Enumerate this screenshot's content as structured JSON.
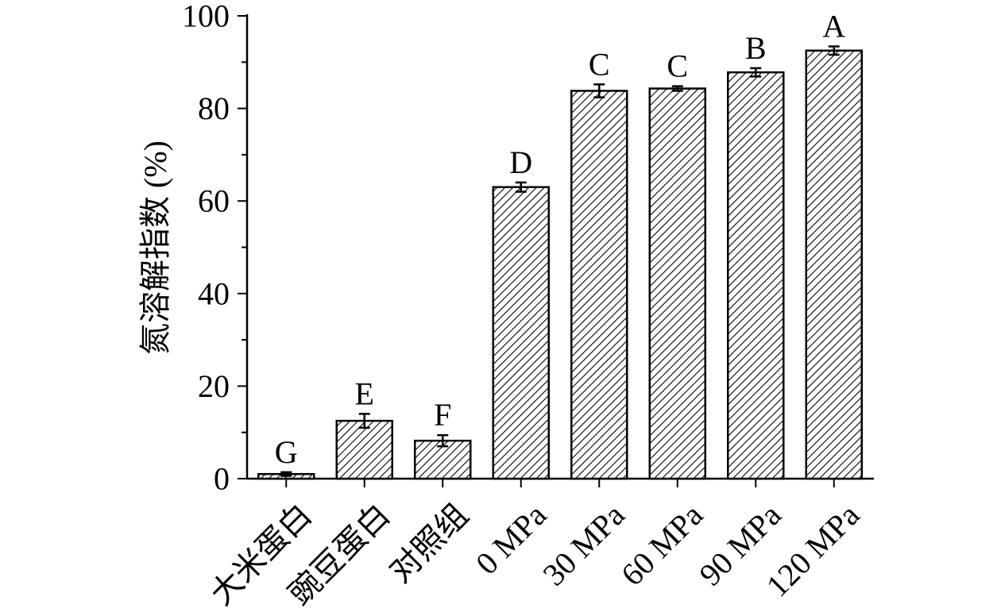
{
  "chart_data": {
    "type": "bar",
    "categories": [
      "大米蛋白",
      "豌豆蛋白",
      "对照组",
      "0 MPa",
      "30 MPa",
      "60 MPa",
      "90 MPa",
      "120 MPa"
    ],
    "values": [
      1.0,
      12.5,
      8.2,
      63.0,
      83.8,
      84.3,
      87.8,
      92.5
    ],
    "errors": [
      0.4,
      1.5,
      1.2,
      1.0,
      1.4,
      0.5,
      0.9,
      0.9
    ],
    "significance": [
      "G",
      "E",
      "F",
      "D",
      "C",
      "C",
      "B",
      "A"
    ],
    "ylabel": "氮溶解指数 (%)",
    "ylim": [
      0,
      100
    ],
    "yticks": [
      "0",
      "20",
      "40",
      "60",
      "80",
      "100"
    ],
    "bar_pattern": "diagonal-hatch",
    "grid": false,
    "legend": "none"
  }
}
